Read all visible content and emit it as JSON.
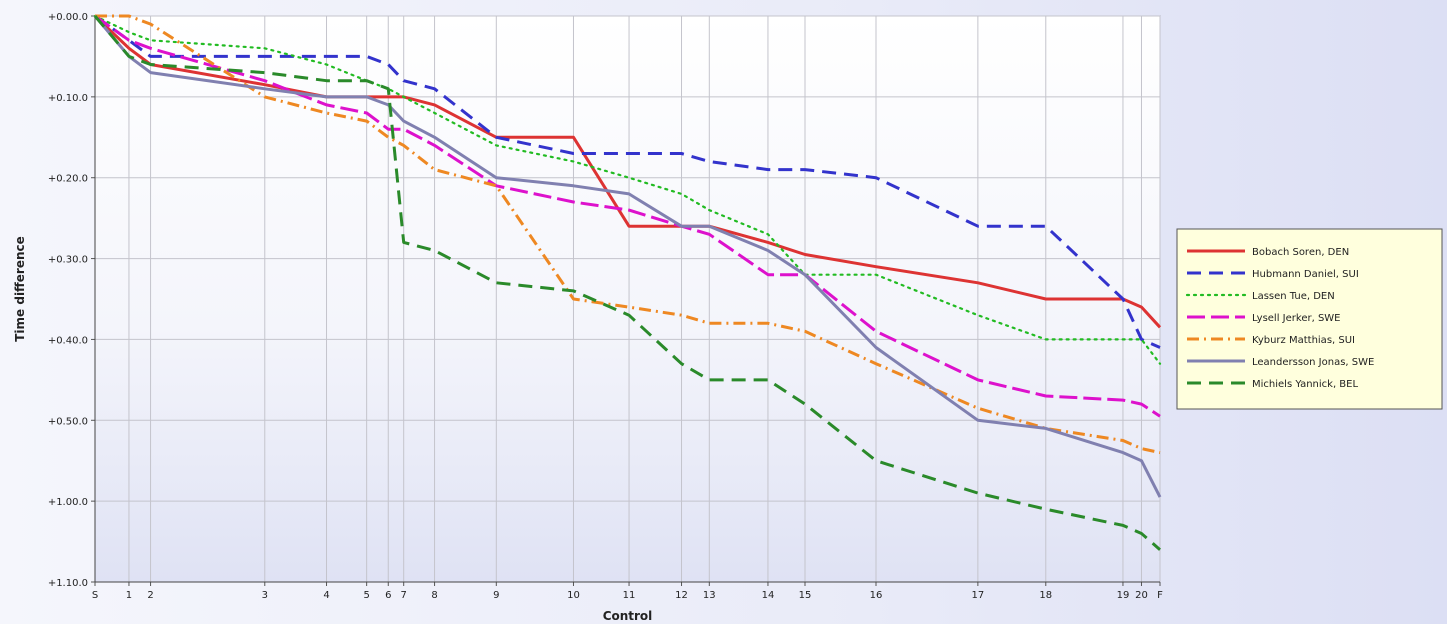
{
  "chart_data": {
    "type": "line",
    "xlabel": "Control",
    "ylabel": "Time difference",
    "categories": [
      "S",
      "1",
      "2",
      "3",
      "4",
      "5",
      "6",
      "7",
      "8",
      "9",
      "10",
      "11",
      "12",
      "13",
      "14",
      "15",
      "16",
      "17",
      "18",
      "19",
      "20",
      "F"
    ],
    "x": [
      0,
      1.1,
      1.8,
      5.5,
      7.5,
      8.8,
      9.5,
      10.0,
      11.0,
      13.0,
      15.5,
      17.3,
      19.0,
      19.9,
      21.8,
      23.0,
      25.3,
      28.6,
      30.8,
      33.3,
      33.9,
      34.5
    ],
    "y_ticks": [
      "+0.00.0",
      "+0.10.0",
      "+0.20.0",
      "+0.30.0",
      "+0.40.0",
      "+0.50.0",
      "+1.00.0",
      "+1.10.0"
    ],
    "y_unit": "minutes",
    "ylim": [
      0,
      70
    ],
    "grid": true,
    "legend_position": "right",
    "series": [
      {
        "name": "Bobach Soren, DEN",
        "color": "#dd3333",
        "dash": "solid",
        "values": [
          0,
          4,
          6,
          8.5,
          10,
          10,
          10,
          10,
          11,
          15,
          15,
          26,
          26,
          26,
          28,
          29.5,
          31,
          33,
          35,
          35,
          36,
          38.5
        ]
      },
      {
        "name": "Hubmann Daniel, SUI",
        "color": "#3333cc",
        "dash": "dashed",
        "values": [
          0,
          3,
          5,
          5,
          5,
          5,
          6,
          8,
          9,
          15,
          17,
          17,
          17,
          18,
          19,
          19,
          20,
          26,
          26,
          35,
          40,
          41
        ]
      },
      {
        "name": "Lassen Tue, DEN",
        "color": "#22bb22",
        "dash": "dotted",
        "values": [
          0,
          2,
          3,
          4,
          6,
          8,
          9,
          10,
          12,
          16,
          18,
          20,
          22,
          24,
          27,
          32,
          32,
          37,
          40,
          40,
          40,
          43
        ]
      },
      {
        "name": "Lysell Jerker, SWE",
        "color": "#dd11cc",
        "dash": "longdash",
        "values": [
          0,
          3,
          4,
          8,
          11,
          12,
          14,
          14,
          16,
          21,
          23,
          24,
          26,
          27,
          32,
          32,
          39,
          45,
          47,
          47.5,
          48,
          49.5
        ]
      },
      {
        "name": "Kyburz Matthias, SUI",
        "color": "#ee8822",
        "dash": "dashdot",
        "values": [
          0,
          0,
          1,
          10,
          12,
          13,
          15,
          16,
          19,
          21,
          35,
          36,
          37,
          38,
          38,
          39,
          43,
          48.5,
          51,
          52.5,
          53.5,
          54
        ]
      },
      {
        "name": "Leandersson Jonas, SWE",
        "color": "#8080b0",
        "dash": "solid",
        "values": [
          0,
          5,
          7,
          9,
          10,
          10,
          11,
          13,
          15,
          20,
          21,
          22,
          26,
          26,
          29,
          32,
          41,
          50,
          51,
          54,
          55,
          59.5
        ]
      },
      {
        "name": "Michiels Yannick, BEL",
        "color": "#2a8a2a",
        "dash": "dashed",
        "values": [
          0,
          5,
          6,
          7,
          8,
          8,
          9,
          28,
          29,
          33,
          34,
          37,
          43,
          45,
          45,
          48,
          55,
          59,
          61,
          63,
          64,
          66
        ]
      }
    ]
  }
}
